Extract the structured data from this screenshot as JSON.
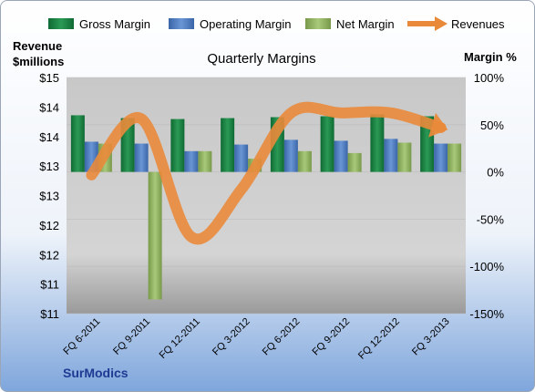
{
  "chart_data": {
    "type": "bar",
    "title": "Quarterly Margins",
    "brand": "SurModics",
    "ylabel_left": [
      "Revenue",
      "$millions"
    ],
    "ylabel_right": "Margin %",
    "left_ticks": [
      "$15",
      "$14",
      "$14",
      "$13",
      "$13",
      "$12",
      "$12",
      "$11",
      "$11"
    ],
    "right_ticks": [
      "100%",
      "50%",
      "0%",
      "-50%",
      "-100%",
      "-150%"
    ],
    "ylim_margin": [
      -150,
      100
    ],
    "categories": [
      "FQ 6-2011",
      "FQ 9-2011",
      "FQ 12-2011",
      "FQ 3-2012",
      "FQ 6-2012",
      "FQ 9-2012",
      "FQ 12-2012",
      "FQ 3-2013"
    ],
    "series": [
      {
        "name": "Gross Margin",
        "kind": "bar",
        "color": "#1a7f42",
        "values": [
          60,
          57,
          56,
          57,
          58,
          59,
          61,
          59
        ]
      },
      {
        "name": "Operating Margin",
        "kind": "bar",
        "color": "#4f7fc3",
        "values": [
          32,
          30,
          22,
          29,
          34,
          33,
          35,
          30
        ]
      },
      {
        "name": "Net Margin",
        "kind": "bar",
        "color": "#8fb15e",
        "values": [
          30,
          -135,
          22,
          14,
          22,
          20,
          31,
          30
        ]
      },
      {
        "name": "Revenues",
        "kind": "line",
        "color": "#e98a3b",
        "values": [
          13.35,
          14.3,
          12.3,
          13.1,
          14.4,
          14.4,
          14.4,
          14.15
        ]
      }
    ],
    "revenue_axis": [
      11,
      15
    ]
  }
}
